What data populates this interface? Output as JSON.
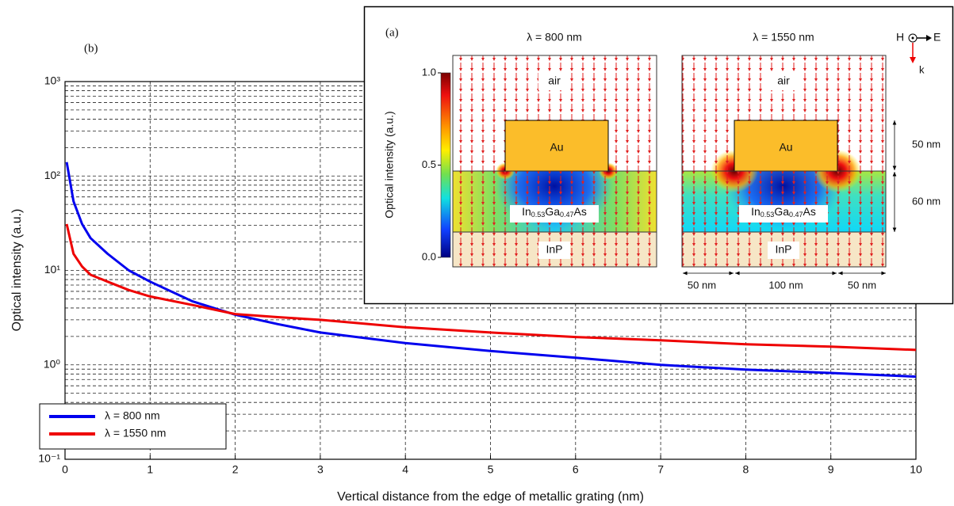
{
  "chart_data": {
    "type": "line",
    "label": "(b)",
    "x_label": "Vertical distance from the edge of metallic grating (nm)",
    "y_label": "Optical intensity (a.u.)",
    "x": [
      0.02,
      0.1,
      0.2,
      0.3,
      0.5,
      0.75,
      1,
      1.5,
      2,
      2.5,
      3,
      4,
      5,
      6,
      7,
      8,
      9,
      10
    ],
    "series": [
      {
        "name": "λ = 800 nm",
        "color": "#0000ee",
        "values": [
          140,
          54,
          31,
          22,
          15,
          10,
          7.6,
          4.7,
          3.4,
          2.7,
          2.2,
          1.7,
          1.4,
          1.19,
          1.0,
          0.89,
          0.82,
          0.75
        ]
      },
      {
        "name": "λ = 1550 nm",
        "color": "#ee0000",
        "values": [
          31,
          15,
          11,
          9,
          7.6,
          6.2,
          5.3,
          4.3,
          3.45,
          3.2,
          3.0,
          2.5,
          2.2,
          1.97,
          1.82,
          1.65,
          1.56,
          1.44
        ]
      }
    ],
    "xlim": [
      0,
      10
    ],
    "xticks": [
      0,
      1,
      2,
      3,
      4,
      5,
      6,
      7,
      8,
      9,
      10
    ],
    "ylim": [
      0.1,
      1000
    ],
    "log_y": true,
    "yticks": [
      {
        "value": 0.1,
        "label": "10⁻¹"
      },
      {
        "value": 1,
        "label": "10⁰"
      },
      {
        "value": 10,
        "label": "10¹"
      },
      {
        "value": 100,
        "label": "10²"
      },
      {
        "value": 1000,
        "label": "10³"
      }
    ],
    "grid": true,
    "legend": "lower left"
  },
  "inset": {
    "label": "(a)",
    "panels": [
      {
        "title": "λ = 800 nm",
        "air": "air",
        "metal": "Au",
        "layer": [
          "In",
          "0.53",
          "Ga",
          "0.47",
          "As"
        ],
        "substrate": "InP"
      },
      {
        "title": "λ = 1550 nm",
        "air": "air",
        "metal": "Au",
        "layer": [
          "In",
          "0.53",
          "Ga",
          "0.47",
          "As"
        ],
        "substrate": "InP"
      }
    ],
    "colorbar": {
      "label": "Optical intensity (a.u.)",
      "ticks": [
        {
          "value": 1,
          "label": "1.0"
        },
        {
          "value": 0.5,
          "label": "0.5"
        },
        {
          "value": 0,
          "label": "0.0"
        }
      ]
    },
    "field_axes": {
      "h": "H",
      "e": "E",
      "k": "k"
    },
    "dimensions": {
      "metal_height": "50 nm",
      "layer_height": "60 nm",
      "widths": [
        "50 nm",
        "100 nm",
        "50 nm"
      ]
    }
  }
}
